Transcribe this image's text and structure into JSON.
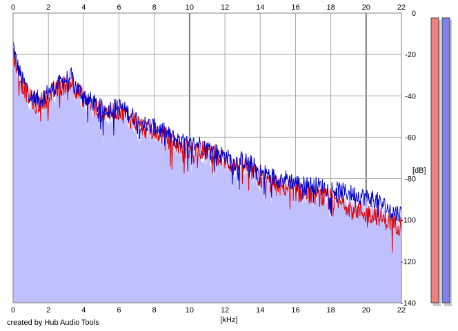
{
  "chart_data": {
    "type": "area",
    "xlabel": "[kHz]",
    "ylabel": "[dB]",
    "xlim": [
      0,
      22
    ],
    "ylim": [
      -140,
      0
    ],
    "x_ticks": [
      "0",
      "2",
      "4",
      "6",
      "8",
      "10",
      "12",
      "14",
      "16",
      "18",
      "20",
      "22"
    ],
    "y_ticks": [
      "0",
      "-20",
      "-40",
      "-60",
      "-80",
      "-100",
      "-120",
      "-140"
    ],
    "grid": true,
    "series": [
      {
        "color": "#e00000",
        "x": [
          0,
          0.2,
          0.5,
          1,
          1.5,
          2,
          2.5,
          3,
          3.3,
          3.6,
          4,
          4.5,
          5,
          5.5,
          6,
          6.5,
          7,
          7.5,
          8,
          8.5,
          9,
          9.5,
          10,
          10.5,
          11,
          11.5,
          12,
          12.5,
          13,
          13.5,
          14,
          14.5,
          15,
          15.5,
          16,
          16.5,
          17,
          17.5,
          18,
          18.5,
          19,
          19.5,
          20,
          20.5,
          21,
          21.5,
          22
        ],
        "values": [
          -18,
          -26,
          -34,
          -42,
          -44,
          -40,
          -37,
          -34,
          -33,
          -37,
          -41,
          -45,
          -48,
          -48,
          -47,
          -50,
          -53,
          -56,
          -57,
          -59,
          -62,
          -64,
          -67,
          -66,
          -67,
          -69,
          -71,
          -74,
          -73,
          -76,
          -80,
          -82,
          -84,
          -84,
          -86,
          -87,
          -88,
          -89,
          -90,
          -92,
          -93,
          -95,
          -97,
          -97,
          -100,
          -101,
          -103
        ]
      },
      {
        "color": "#0000cc",
        "x": [
          0,
          0.2,
          0.5,
          1,
          1.5,
          2,
          2.5,
          3,
          3.3,
          3.6,
          4,
          4.5,
          5,
          5.5,
          6,
          6.5,
          7,
          7.5,
          8,
          8.5,
          9,
          9.5,
          10,
          10.5,
          11,
          11.5,
          12,
          12.5,
          13,
          13.5,
          14,
          14.5,
          15,
          15.5,
          16,
          16.5,
          17,
          17.5,
          18,
          18.5,
          19,
          19.5,
          20,
          20.5,
          21,
          21.5,
          22
        ],
        "values": [
          -15,
          -24,
          -32,
          -40,
          -42,
          -38,
          -35,
          -32,
          -31,
          -36,
          -40,
          -43,
          -46,
          -46,
          -45,
          -48,
          -51,
          -54,
          -55,
          -57,
          -60,
          -62,
          -64,
          -63,
          -65,
          -67,
          -69,
          -72,
          -71,
          -73,
          -77,
          -78,
          -80,
          -80,
          -82,
          -83,
          -83,
          -84,
          -85,
          -86,
          -87,
          -88,
          -89,
          -90,
          -93,
          -96,
          -97
        ]
      }
    ],
    "meters": [
      {
        "color": "#f08080"
      },
      {
        "color": "#8080f0"
      }
    ]
  },
  "footer": {
    "credit": "created by Hub Audio Tools"
  }
}
